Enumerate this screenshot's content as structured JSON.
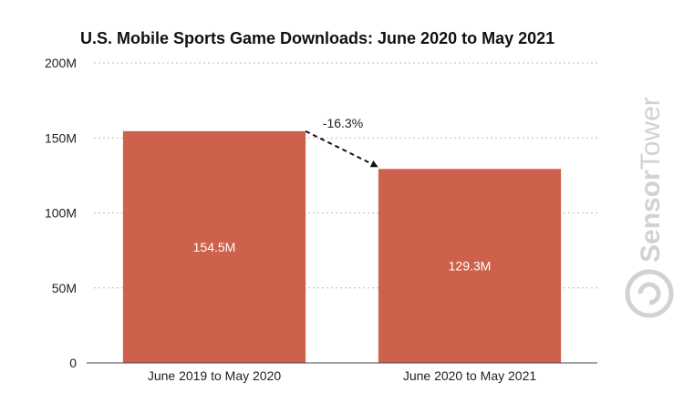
{
  "chart_data": {
    "type": "bar",
    "title": "U.S. Mobile Sports Game Downloads: June 2020 to May 2021",
    "categories": [
      "June 2019 to May 2020",
      "June 2020 to May 2021"
    ],
    "values": [
      154.5,
      129.3
    ],
    "data_labels": [
      "154.5M",
      "129.3M"
    ],
    "ylim": [
      0,
      200
    ],
    "yticks": [
      {
        "value": 0,
        "label": "0"
      },
      {
        "value": 50,
        "label": "50M"
      },
      {
        "value": 100,
        "label": "100M"
      },
      {
        "value": 150,
        "label": "150M"
      },
      {
        "value": 200,
        "label": "200M"
      }
    ],
    "bar_color": "#cd614c",
    "grid": true,
    "annotation": {
      "label": "-16.3%",
      "from_index": 0,
      "to_index": 1
    }
  },
  "watermark": {
    "brand_light": "Sensor",
    "brand_bold": "Tower"
  }
}
